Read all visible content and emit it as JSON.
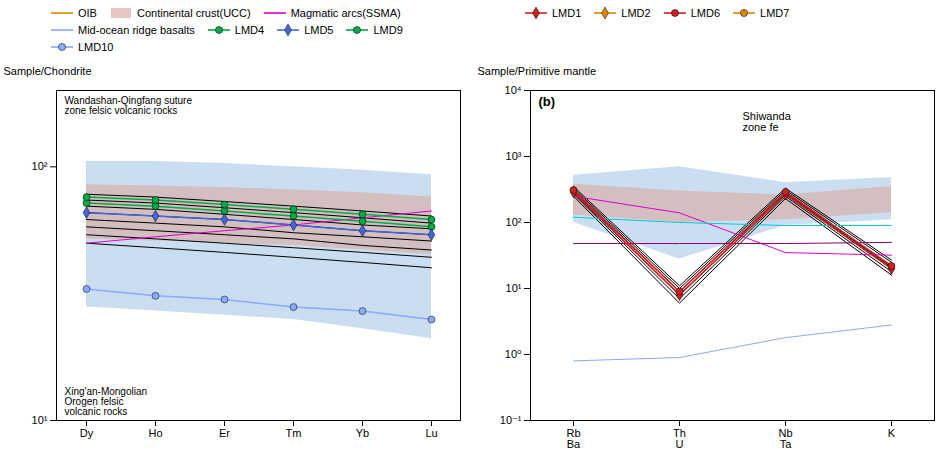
{
  "chart_data": [
    {
      "type": "line",
      "y_label": "Sample/Chondrite",
      "categories": [
        "Dy",
        "Ho",
        "Er",
        "Tm",
        "Yb",
        "Lu"
      ],
      "log": "y",
      "ylim": [
        10,
        200
      ],
      "yticks": [
        {
          "value": 10,
          "label": "10¹"
        },
        {
          "value": 100,
          "label": "10²"
        }
      ],
      "grid": false,
      "legend": "top",
      "annotations": [
        "Wandashan-Qingfang suture\nzone felsic volcanic rocks",
        "Xing'an-Mongolian\nOrogen felsic\nvolcanic rocks"
      ],
      "series": [
        {
          "name": "OIB",
          "type": "line",
          "color": "#dd8800",
          "values": [
            null,
            null,
            null,
            null,
            null,
            null
          ]
        },
        {
          "type": "area",
          "color": "#a8c8e8",
          "lower": [
            28,
            27,
            26,
            25,
            23,
            21
          ],
          "upper": [
            105,
            105,
            103,
            100,
            97,
            93
          ]
        },
        {
          "name": "Continental crust(UCC)",
          "type": "area",
          "color": "#d8a8a0",
          "lower": [
            52,
            51,
            50,
            49,
            47,
            45
          ],
          "upper": [
            85,
            84,
            83,
            81,
            79,
            76
          ]
        },
        {
          "type": "line",
          "color": "#000000",
          "values": [
            78,
            76,
            73,
            70,
            67,
            64
          ]
        },
        {
          "type": "line",
          "color": "#000000",
          "values": [
            74,
            72,
            69,
            66,
            63,
            60
          ]
        },
        {
          "type": "line",
          "color": "#000000",
          "values": [
            70,
            68,
            65,
            62,
            59,
            57
          ]
        },
        {
          "type": "line",
          "color": "#000000",
          "values": [
            66,
            64,
            62,
            59,
            56,
            54
          ]
        },
        {
          "type": "line",
          "color": "#000000",
          "values": [
            62,
            60,
            58,
            55,
            53,
            51
          ]
        },
        {
          "type": "line",
          "color": "#000000",
          "values": [
            58,
            56,
            54,
            52,
            49,
            47
          ]
        },
        {
          "type": "line",
          "color": "#000000",
          "values": [
            54,
            52,
            50,
            48,
            46,
            44
          ]
        },
        {
          "type": "line",
          "color": "#000000",
          "values": [
            50,
            48,
            46,
            44,
            42,
            40
          ]
        },
        {
          "name": "Magmatic arcs(SSMA)",
          "type": "line",
          "color": "#dd00cc",
          "values": [
            50,
            53,
            56,
            59,
            63,
            67
          ]
        },
        {
          "name": "Mid-ocean ridge basalts",
          "type": "line",
          "color": "#88aaff",
          "values": [
            null,
            null,
            null,
            null,
            null,
            null
          ]
        },
        {
          "name": "LMD4",
          "type": "line",
          "marker": "circle",
          "color": "#00aa44",
          "values": [
            72,
            70,
            67,
            64,
            61,
            58
          ]
        },
        {
          "name": "LMD5",
          "type": "line",
          "marker": "diamond",
          "color": "#4466dd",
          "values": [
            66,
            64,
            62,
            59,
            56,
            54
          ]
        },
        {
          "name": "LMD9",
          "type": "line",
          "marker": "circle",
          "color": "#00aa44",
          "values": [
            76,
            74,
            71,
            68,
            65,
            62
          ]
        },
        {
          "name": "LMD10",
          "type": "line",
          "marker": "circle",
          "color": "#88aaff",
          "values": [
            33,
            31,
            30,
            28,
            27,
            25
          ]
        }
      ]
    },
    {
      "type": "line",
      "y_label": "Sample/Primitive mantle",
      "categories": [
        "Rb\nBa",
        "Th\nU",
        "Nb\nTa",
        "K"
      ],
      "log": "y",
      "ylim": [
        0.1,
        10000
      ],
      "yticks": [
        {
          "value": 0.1,
          "label": "10⁻¹"
        },
        {
          "value": 1,
          "label": "10⁰"
        },
        {
          "value": 10,
          "label": "10¹"
        },
        {
          "value": 100,
          "label": "10²"
        },
        {
          "value": 1000,
          "label": "10³"
        },
        {
          "value": 10000,
          "label": "10⁴"
        }
      ],
      "grid": false,
      "legend": "top",
      "annotations": [
        "(b)",
        "Shiwanda\nzone fe"
      ],
      "series": [
        {
          "type": "area",
          "color": "#a8c8e8",
          "lower": [
            100,
            28,
            90,
            110
          ],
          "upper": [
            520,
            700,
            400,
            480
          ]
        },
        {
          "type": "area",
          "color": "#d8a8a0",
          "lower": [
            130,
            100,
            110,
            140
          ],
          "upper": [
            380,
            300,
            260,
            350
          ]
        },
        {
          "type": "line",
          "color": "#000000",
          "values": [
            290,
            8,
            270,
            20
          ]
        },
        {
          "type": "line",
          "color": "#000000",
          "values": [
            310,
            9,
            290,
            22
          ]
        },
        {
          "type": "line",
          "color": "#000000",
          "values": [
            270,
            7,
            250,
            18
          ]
        },
        {
          "type": "line",
          "color": "#000000",
          "values": [
            330,
            10,
            310,
            25
          ]
        },
        {
          "type": "line",
          "color": "#000000",
          "values": [
            250,
            6,
            230,
            16
          ]
        },
        {
          "type": "line",
          "color": "#000000",
          "values": [
            350,
            11,
            330,
            27
          ]
        },
        {
          "type": "line",
          "color": "#000000",
          "values": [
            280,
            8,
            265,
            20
          ]
        },
        {
          "type": "line",
          "color": "#000000",
          "values": [
            300,
            9,
            280,
            21
          ]
        },
        {
          "type": "line",
          "color": "#dd00cc",
          "values": [
            250,
            140,
            35,
            32
          ]
        },
        {
          "type": "line",
          "color": "#00cccc",
          "values": [
            120,
            100,
            90,
            90
          ]
        },
        {
          "type": "line",
          "color": "#880077",
          "values": [
            48,
            48,
            48,
            50
          ]
        },
        {
          "type": "line",
          "color": "#88aaff",
          "values": [
            0.8,
            0.9,
            1.8,
            2.8
          ]
        },
        {
          "name": "LMD1",
          "type": "line",
          "marker": "diamond",
          "color": "#cc2222",
          "values": [
            290,
            8,
            270,
            20
          ]
        },
        {
          "name": "LMD2",
          "type": "line",
          "marker": "diamond",
          "color": "#dd8800",
          "values": [
            null,
            null,
            null,
            null
          ]
        },
        {
          "name": "LMD6",
          "type": "line",
          "marker": "circle",
          "color": "#cc2222",
          "values": [
            310,
            9,
            290,
            22
          ]
        },
        {
          "name": "LMD7",
          "type": "line",
          "marker": "circle",
          "color": "#dd8800",
          "values": [
            null,
            null,
            null,
            null
          ]
        }
      ]
    }
  ]
}
